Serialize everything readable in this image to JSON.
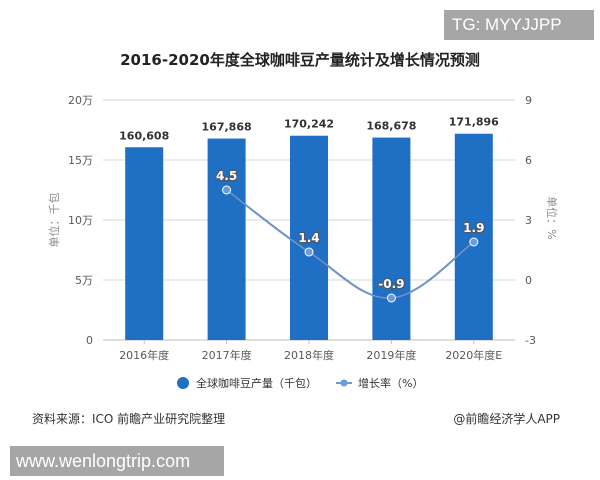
{
  "badges": {
    "top_right": "TG: MYYJJPP",
    "bottom_left": "www.wenlongtrip.com"
  },
  "footer": {
    "source": "资料来源：ICO 前瞻产业研究院整理",
    "credit": "@前瞻经济学人APP"
  },
  "colors": {
    "bar": "#1f6fc5",
    "line": "#6a9be0",
    "line_dark": "#5a6e8c",
    "grid": "#d9d9d9",
    "axis_text": "#595959"
  },
  "chart_data": {
    "type": "bar",
    "title": "2016-2020年度全球咖啡豆产量统计及增长情况预测",
    "categories": [
      "2016年度",
      "2017年度",
      "2018年度",
      "2019年度",
      "2020年度E"
    ],
    "series": [
      {
        "name": "全球咖啡豆产量（千包）",
        "type": "bar",
        "axis": "left",
        "values": [
          160608,
          167868,
          170242,
          168678,
          171896
        ],
        "labels": [
          "160,608",
          "167,868",
          "170,242",
          "168,678",
          "171,896"
        ]
      },
      {
        "name": "增长率（%）",
        "type": "line",
        "axis": "right",
        "values": [
          null,
          4.5,
          1.4,
          -0.9,
          1.9
        ],
        "labels": [
          "",
          "4.5",
          "1.4",
          "-0.9",
          "1.9"
        ]
      }
    ],
    "ylabel": "单位：千包",
    "y2label": "单位：%",
    "ylim": [
      0,
      200000
    ],
    "y2lim": [
      -3,
      9
    ],
    "yticks": [
      "0",
      "5万",
      "10万",
      "15万",
      "20万"
    ],
    "y2ticks": [
      "-3",
      "0",
      "3",
      "6",
      "9"
    ],
    "grid": true,
    "legend_position": "bottom"
  }
}
